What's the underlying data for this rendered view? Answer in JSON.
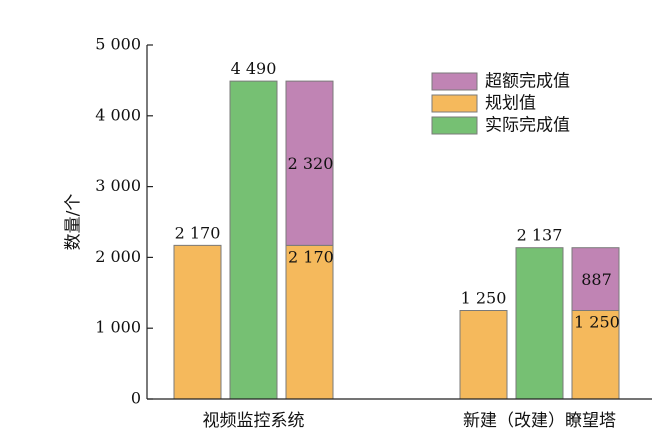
{
  "chart_data": {
    "type": "bar",
    "ylabel": "数量/个",
    "ylim": [
      0,
      5000
    ],
    "yticks": [
      0,
      1000,
      2000,
      3000,
      4000,
      5000
    ],
    "ytick_labels": [
      "0",
      "1 000",
      "2 000",
      "3 000",
      "4 000",
      "5 000"
    ],
    "categories": [
      "视频监控系统",
      "新建（改建）瞭望塔"
    ],
    "legend": {
      "position": "top-right",
      "entries": [
        "超额完成值",
        "规划值",
        "实际完成值"
      ]
    },
    "series": [
      {
        "name": "规划值",
        "values": [
          2170,
          1250
        ],
        "labels": [
          "2 170",
          "1 250"
        ],
        "color": "#F5B95C"
      },
      {
        "name": "实际完成值",
        "values": [
          4490,
          2137
        ],
        "labels": [
          "4 490",
          "2 137"
        ],
        "color": "#76C073"
      },
      {
        "name": "超额完成值",
        "values": [
          2320,
          887
        ],
        "labels": [
          "2 320",
          "887"
        ],
        "color": "#C084B4"
      }
    ],
    "stacked_bar": {
      "description_components": [
        "规划值",
        "超额完成值"
      ],
      "base_labels": [
        "2 170",
        "1 250"
      ]
    }
  }
}
